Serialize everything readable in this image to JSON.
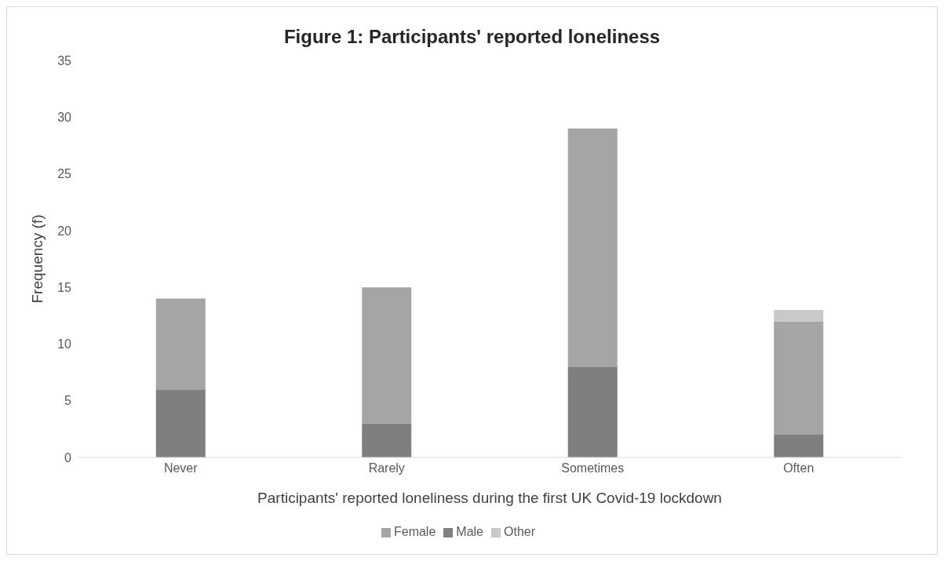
{
  "chart_data": {
    "type": "bar",
    "title": "Figure 1: Participants' reported loneliness",
    "xlabel": "Participants' reported loneliness during the first UK Covid-19 lockdown",
    "ylabel": "Frequency (f)",
    "categories": [
      "Never",
      "Rarely",
      "Sometimes",
      "Often"
    ],
    "stacked": true,
    "series": [
      {
        "name": "Male",
        "color": "#7f7f7f",
        "values": [
          6,
          3,
          8,
          2
        ]
      },
      {
        "name": "Female",
        "color": "#a5a5a5",
        "values": [
          8,
          12,
          21,
          10
        ]
      },
      {
        "name": "Other",
        "color": "#c9c9c9",
        "values": [
          0,
          0,
          0,
          1
        ]
      }
    ],
    "ylim": [
      0,
      35
    ],
    "yticks": [
      0,
      5,
      10,
      15,
      20,
      25,
      30,
      35
    ],
    "grid": false,
    "legend": "bottom"
  }
}
